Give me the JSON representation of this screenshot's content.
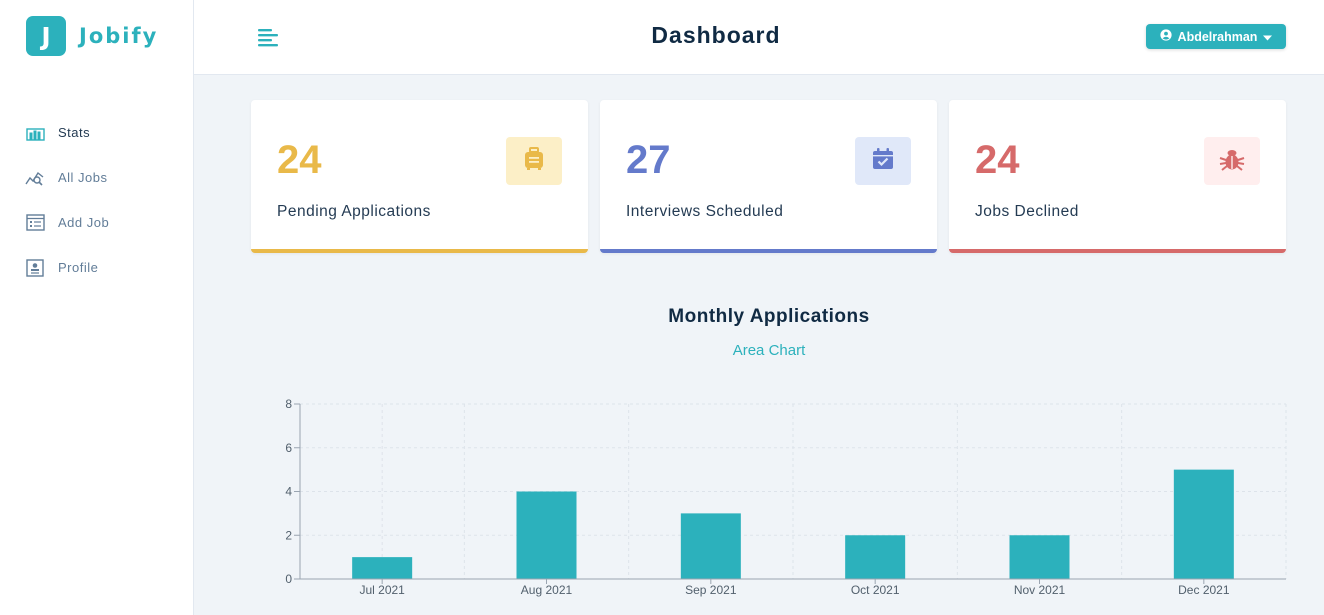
{
  "brand": {
    "logo_letter": "J",
    "name": "Jobify"
  },
  "sidebar": {
    "items": [
      {
        "label": "Stats",
        "icon": "bar-chart-icon",
        "active": true
      },
      {
        "label": "All Jobs",
        "icon": "query-stats-icon",
        "active": false
      },
      {
        "label": "Add Job",
        "icon": "form-icon",
        "active": false
      },
      {
        "label": "Profile",
        "icon": "profile-card-icon",
        "active": false
      }
    ]
  },
  "header": {
    "title": "Dashboard",
    "user_name": "Abdelrahman",
    "toggle_icon": "align-left-icon",
    "user_icon": "user-circle-icon",
    "dropdown_icon": "caret-down-icon"
  },
  "stats": [
    {
      "count": "24",
      "label": "Pending Applications",
      "color": "#e9b949",
      "bg": "#fcefc7",
      "icon": "suitcase-icon"
    },
    {
      "count": "27",
      "label": "Interviews Scheduled",
      "color": "#647acb",
      "bg": "#e0e8f9",
      "icon": "calendar-check-icon"
    },
    {
      "count": "24",
      "label": "Jobs Declined",
      "color": "#d66a6a",
      "bg": "#ffeeee",
      "icon": "bug-icon"
    }
  ],
  "chart": {
    "title": "Monthly Applications",
    "toggle_label": "Area Chart"
  },
  "chart_data": {
    "type": "bar",
    "categories": [
      "Jul 2021",
      "Aug 2021",
      "Sep 2021",
      "Oct 2021",
      "Nov 2021",
      "Dec 2021"
    ],
    "values": [
      1,
      4,
      3,
      2,
      2,
      5
    ],
    "yticks": [
      0,
      2,
      4,
      6,
      8
    ],
    "ylim": [
      0,
      8
    ],
    "grid": true,
    "bar_color": "#2cb1bc"
  }
}
